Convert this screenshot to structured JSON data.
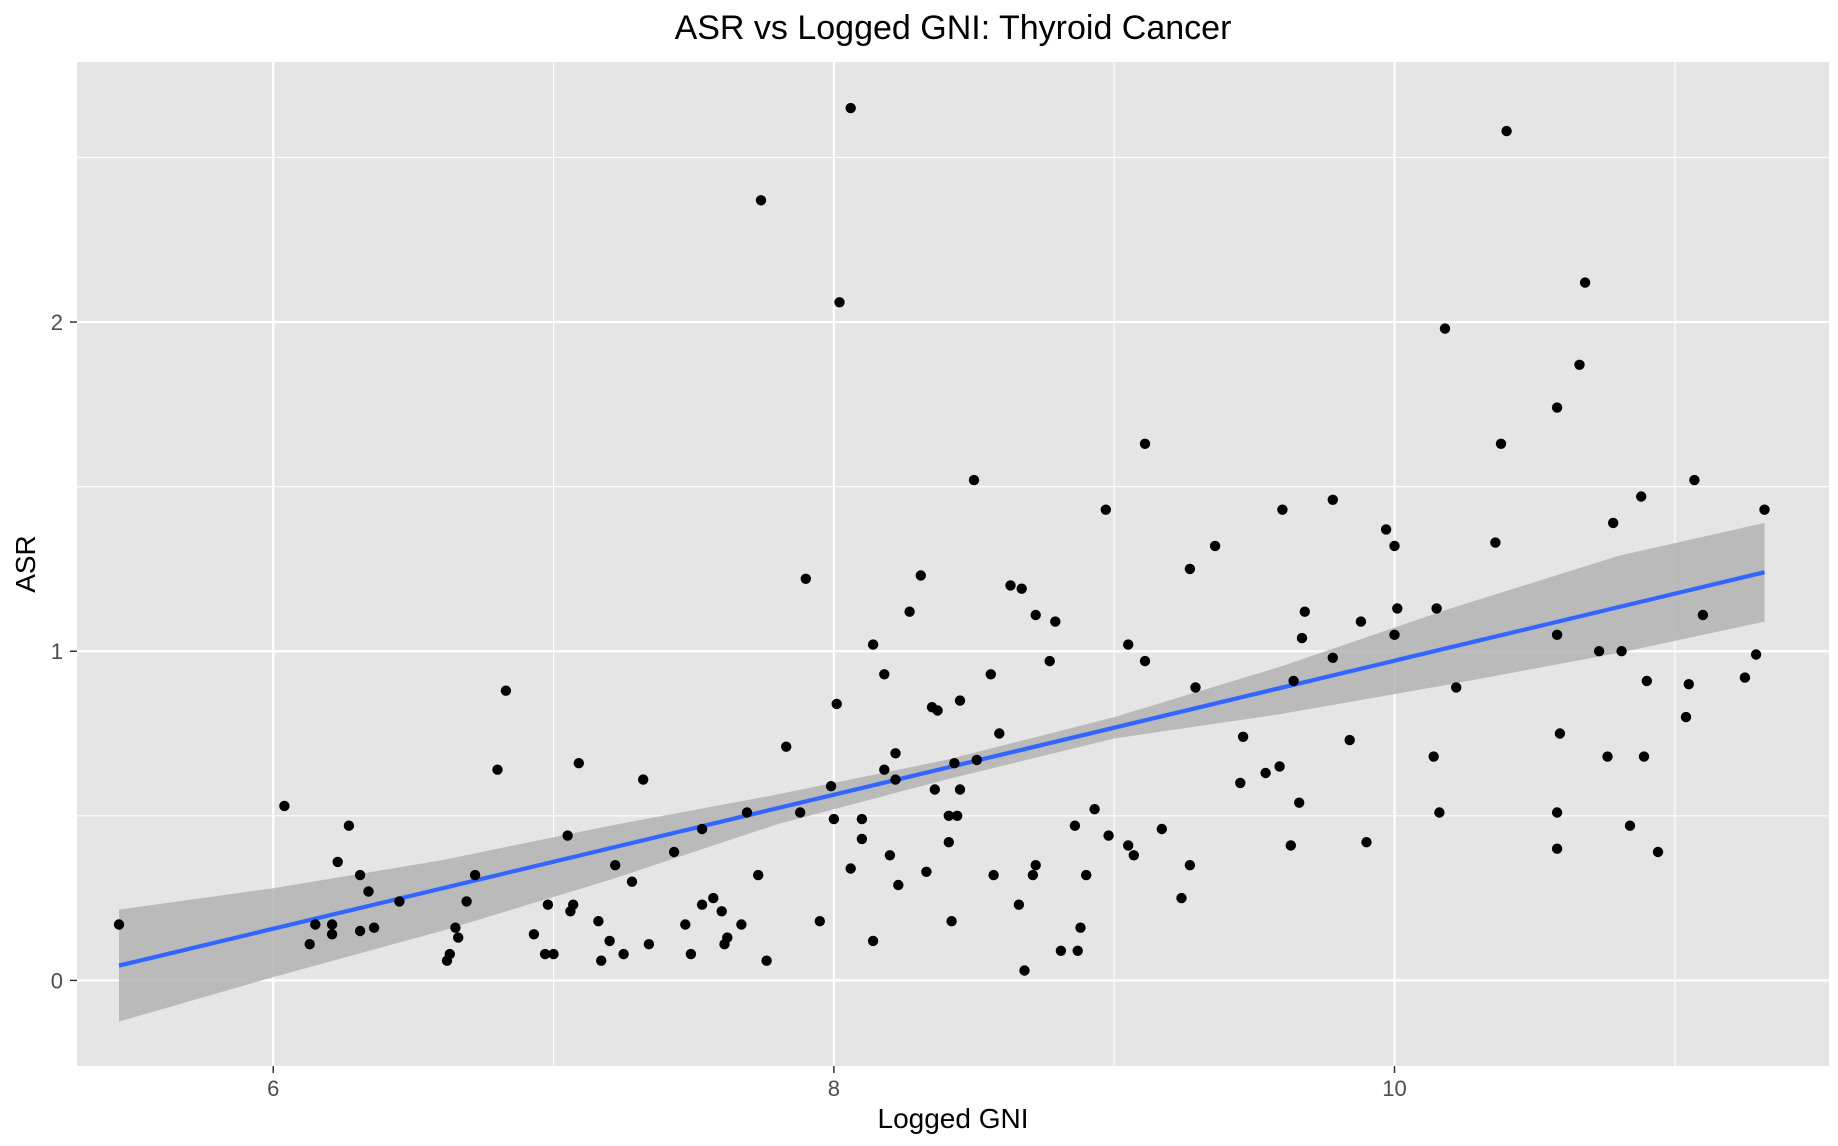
{
  "chart_data": {
    "type": "scatter",
    "title": "ASR vs Logged GNI: Thyroid Cancer",
    "xlabel": "Logged GNI",
    "ylabel": "ASR",
    "xlim": [
      5.3,
      11.55
    ],
    "ylim": [
      -0.26,
      2.79
    ],
    "x_ticks": [
      6,
      8,
      10
    ],
    "x_tick_labels": [
      "6",
      "8",
      "10"
    ],
    "y_ticks": [
      0,
      1,
      2
    ],
    "y_tick_labels": [
      "0",
      "1",
      "2"
    ],
    "grid": true,
    "legend": "none",
    "colors": {
      "panel": "#e5e5e5",
      "grid": "#ffffff",
      "points": "#000000",
      "fit_line": "#3366ff",
      "confidence_band": "#b3b3b3"
    },
    "points": [
      [
        5.45,
        0.17
      ],
      [
        6.04,
        0.53
      ],
      [
        6.13,
        0.11
      ],
      [
        6.15,
        0.17
      ],
      [
        6.21,
        0.14
      ],
      [
        6.21,
        0.17
      ],
      [
        6.23,
        0.36
      ],
      [
        6.27,
        0.47
      ],
      [
        6.31,
        0.32
      ],
      [
        6.31,
        0.15
      ],
      [
        6.34,
        0.27
      ],
      [
        6.36,
        0.16
      ],
      [
        6.45,
        0.24
      ],
      [
        6.62,
        0.06
      ],
      [
        6.63,
        0.08
      ],
      [
        6.65,
        0.16
      ],
      [
        6.66,
        0.13
      ],
      [
        6.69,
        0.24
      ],
      [
        6.72,
        0.32
      ],
      [
        6.8,
        0.64
      ],
      [
        6.83,
        0.88
      ],
      [
        6.93,
        0.14
      ],
      [
        6.97,
        0.08
      ],
      [
        6.98,
        0.23
      ],
      [
        7.0,
        0.08
      ],
      [
        7.05,
        0.44
      ],
      [
        7.06,
        0.21
      ],
      [
        7.07,
        0.23
      ],
      [
        7.09,
        0.66
      ],
      [
        7.16,
        0.18
      ],
      [
        7.17,
        0.06
      ],
      [
        7.2,
        0.12
      ],
      [
        7.22,
        0.35
      ],
      [
        7.25,
        0.08
      ],
      [
        7.28,
        0.3
      ],
      [
        7.32,
        0.61
      ],
      [
        7.34,
        0.11
      ],
      [
        7.43,
        0.39
      ],
      [
        7.47,
        0.17
      ],
      [
        7.49,
        0.08
      ],
      [
        7.53,
        0.46
      ],
      [
        7.53,
        0.23
      ],
      [
        7.57,
        0.25
      ],
      [
        7.6,
        0.21
      ],
      [
        7.61,
        0.11
      ],
      [
        7.62,
        0.13
      ],
      [
        7.67,
        0.17
      ],
      [
        7.69,
        0.51
      ],
      [
        7.73,
        0.32
      ],
      [
        7.74,
        2.37
      ],
      [
        7.76,
        0.06
      ],
      [
        7.83,
        0.71
      ],
      [
        7.88,
        0.51
      ],
      [
        7.9,
        1.22
      ],
      [
        7.95,
        0.18
      ],
      [
        7.99,
        0.59
      ],
      [
        8.0,
        0.49
      ],
      [
        8.01,
        0.84
      ],
      [
        8.02,
        2.06
      ],
      [
        8.06,
        2.65
      ],
      [
        8.06,
        0.34
      ],
      [
        8.1,
        0.49
      ],
      [
        8.1,
        0.43
      ],
      [
        8.14,
        1.02
      ],
      [
        8.14,
        0.12
      ],
      [
        8.18,
        0.64
      ],
      [
        8.18,
        0.93
      ],
      [
        8.2,
        0.38
      ],
      [
        8.22,
        0.61
      ],
      [
        8.22,
        0.69
      ],
      [
        8.23,
        0.29
      ],
      [
        8.27,
        1.12
      ],
      [
        8.31,
        1.23
      ],
      [
        8.33,
        0.33
      ],
      [
        8.35,
        0.83
      ],
      [
        8.36,
        0.58
      ],
      [
        8.37,
        0.82
      ],
      [
        8.41,
        0.42
      ],
      [
        8.41,
        0.5
      ],
      [
        8.42,
        0.18
      ],
      [
        8.43,
        0.66
      ],
      [
        8.44,
        0.5
      ],
      [
        8.45,
        0.58
      ],
      [
        8.45,
        0.85
      ],
      [
        8.5,
        1.52
      ],
      [
        8.51,
        0.67
      ],
      [
        8.56,
        0.93
      ],
      [
        8.57,
        0.32
      ],
      [
        8.59,
        0.75
      ],
      [
        8.63,
        1.2
      ],
      [
        8.66,
        0.23
      ],
      [
        8.67,
        1.19
      ],
      [
        8.68,
        0.03
      ],
      [
        8.71,
        0.32
      ],
      [
        8.72,
        1.11
      ],
      [
        8.72,
        0.35
      ],
      [
        8.77,
        0.97
      ],
      [
        8.79,
        1.09
      ],
      [
        8.81,
        0.09
      ],
      [
        8.86,
        0.47
      ],
      [
        8.87,
        0.09
      ],
      [
        8.88,
        0.16
      ],
      [
        8.9,
        0.32
      ],
      [
        8.93,
        0.52
      ],
      [
        8.97,
        1.43
      ],
      [
        8.98,
        0.44
      ],
      [
        9.05,
        1.02
      ],
      [
        9.05,
        0.41
      ],
      [
        9.07,
        0.38
      ],
      [
        9.11,
        1.63
      ],
      [
        9.11,
        0.97
      ],
      [
        9.17,
        0.46
      ],
      [
        9.24,
        0.25
      ],
      [
        9.27,
        1.25
      ],
      [
        9.27,
        0.35
      ],
      [
        9.29,
        0.89
      ],
      [
        9.36,
        1.32
      ],
      [
        9.45,
        0.6
      ],
      [
        9.46,
        0.74
      ],
      [
        9.54,
        0.63
      ],
      [
        9.59,
        0.65
      ],
      [
        9.6,
        1.43
      ],
      [
        9.63,
        0.41
      ],
      [
        9.64,
        0.91
      ],
      [
        9.66,
        0.54
      ],
      [
        9.67,
        1.04
      ],
      [
        9.68,
        1.12
      ],
      [
        9.78,
        1.46
      ],
      [
        9.78,
        0.98
      ],
      [
        9.84,
        0.73
      ],
      [
        9.88,
        1.09
      ],
      [
        9.9,
        0.42
      ],
      [
        9.97,
        1.37
      ],
      [
        10.0,
        1.32
      ],
      [
        10.0,
        1.05
      ],
      [
        10.01,
        1.13
      ],
      [
        10.14,
        0.68
      ],
      [
        10.15,
        1.13
      ],
      [
        10.16,
        0.51
      ],
      [
        10.18,
        1.98
      ],
      [
        10.22,
        0.89
      ],
      [
        10.36,
        1.33
      ],
      [
        10.38,
        1.63
      ],
      [
        10.4,
        2.58
      ],
      [
        10.58,
        1.74
      ],
      [
        10.58,
        1.05
      ],
      [
        10.58,
        0.51
      ],
      [
        10.58,
        0.4
      ],
      [
        10.59,
        0.75
      ],
      [
        10.66,
        1.87
      ],
      [
        10.68,
        2.12
      ],
      [
        10.73,
        1.0
      ],
      [
        10.76,
        0.68
      ],
      [
        10.78,
        1.39
      ],
      [
        10.81,
        1.0
      ],
      [
        10.84,
        0.47
      ],
      [
        10.88,
        1.47
      ],
      [
        10.89,
        0.68
      ],
      [
        10.9,
        0.91
      ],
      [
        10.94,
        0.39
      ],
      [
        11.04,
        0.8
      ],
      [
        11.05,
        0.9
      ],
      [
        11.07,
        1.52
      ],
      [
        11.1,
        1.11
      ],
      [
        11.25,
        0.92
      ],
      [
        11.29,
        0.99
      ],
      [
        11.32,
        1.43
      ]
    ],
    "fit_line": {
      "x": [
        5.45,
        11.32
      ],
      "y": [
        0.045,
        1.24
      ]
    },
    "confidence_band": {
      "x": [
        5.45,
        6.0,
        6.6,
        7.2,
        7.8,
        8.4,
        9.0,
        9.6,
        10.2,
        10.8,
        11.32
      ],
      "lower": [
        -0.125,
        0.01,
        0.15,
        0.305,
        0.475,
        0.61,
        0.735,
        0.81,
        0.9,
        0.995,
        1.09
      ],
      "upper": [
        0.215,
        0.28,
        0.365,
        0.47,
        0.565,
        0.67,
        0.8,
        0.955,
        1.13,
        1.29,
        1.39
      ]
    }
  }
}
